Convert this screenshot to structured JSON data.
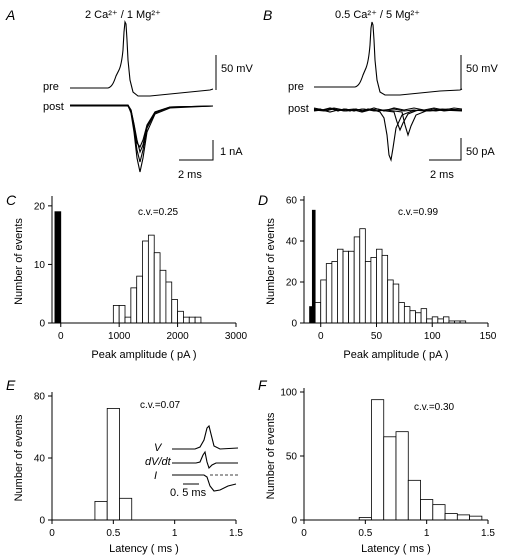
{
  "panels": {
    "A": {
      "letter": "A",
      "condition": "2 Ca²⁺ / 1 Mg²⁺",
      "pre_label": "pre",
      "post_label": "post",
      "scale_v": "50 mV",
      "scale_i": "1 nA",
      "scale_t": "2 ms"
    },
    "B": {
      "letter": "B",
      "condition": "0.5 Ca²⁺ / 5 Mg²⁺",
      "pre_label": "pre",
      "post_label": "post",
      "scale_v": "50 mV",
      "scale_i": "50 pA",
      "scale_t": "2 ms"
    },
    "C": {
      "letter": "C"
    },
    "D": {
      "letter": "D"
    },
    "E": {
      "letter": "E"
    },
    "F": {
      "letter": "F"
    },
    "E_inset": {
      "v": "V",
      "dvdt": "dV/dt",
      "i": "I",
      "scale": "0. 5 ms"
    }
  },
  "chart_data": [
    {
      "id": "C",
      "type": "bar",
      "xlabel": "Peak amplitude ( pA )",
      "ylabel": "Number of events",
      "annotation": "c.v.=0.25",
      "xlim": [
        -150,
        3000
      ],
      "ylim": [
        0,
        21
      ],
      "xticks": [
        0,
        1000,
        2000,
        3000
      ],
      "yticks": [
        0,
        10,
        20
      ],
      "series": [
        {
          "name": "failures",
          "filled": true,
          "bin_width": 100,
          "bins": [
            [
              -100,
              19
            ]
          ]
        },
        {
          "name": "events",
          "filled": false,
          "bin_width": 100,
          "bins": [
            [
              900,
              3
            ],
            [
              1000,
              3
            ],
            [
              1100,
              1
            ],
            [
              1200,
              6
            ],
            [
              1300,
              8
            ],
            [
              1400,
              14
            ],
            [
              1500,
              15
            ],
            [
              1600,
              12
            ],
            [
              1700,
              9
            ],
            [
              1800,
              7
            ],
            [
              1900,
              4
            ],
            [
              2000,
              2
            ],
            [
              2100,
              1
            ],
            [
              2200,
              1
            ],
            [
              2300,
              1
            ]
          ]
        }
      ]
    },
    {
      "id": "D",
      "type": "bar",
      "xlabel": "Peak amplitude ( pA )",
      "ylabel": "Number of events",
      "annotation": "c.v.=0.99",
      "xlim": [
        -15,
        150
      ],
      "ylim": [
        0,
        60
      ],
      "xticks": [
        0,
        50,
        100,
        150
      ],
      "yticks": [
        0,
        20,
        40,
        60
      ],
      "series": [
        {
          "name": "failures",
          "filled": true,
          "bin_width": 2.5,
          "bins": [
            [
              -10,
              8
            ],
            [
              -7.5,
              55
            ],
            [
              -5,
              6
            ],
            [
              -2.5,
              6
            ]
          ]
        },
        {
          "name": "events",
          "filled": false,
          "bin_width": 5,
          "bins": [
            [
              -5,
              10
            ],
            [
              0,
              21
            ],
            [
              5,
              29
            ],
            [
              10,
              30
            ],
            [
              15,
              36
            ],
            [
              20,
              35
            ],
            [
              25,
              35
            ],
            [
              30,
              42
            ],
            [
              35,
              46
            ],
            [
              40,
              30
            ],
            [
              45,
              32
            ],
            [
              50,
              36
            ],
            [
              55,
              33
            ],
            [
              60,
              21
            ],
            [
              65,
              19
            ],
            [
              70,
              10
            ],
            [
              75,
              8
            ],
            [
              80,
              6
            ],
            [
              85,
              5
            ],
            [
              90,
              7
            ],
            [
              95,
              2
            ],
            [
              100,
              3
            ],
            [
              105,
              2
            ],
            [
              110,
              3
            ],
            [
              115,
              1
            ],
            [
              120,
              1
            ],
            [
              125,
              1
            ]
          ]
        }
      ]
    },
    {
      "id": "E",
      "type": "bar",
      "xlabel": "Latency ( ms )",
      "ylabel": "Number of events",
      "annotation": "c.v.=0.07",
      "xlim": [
        0,
        1.5
      ],
      "ylim": [
        0,
        80
      ],
      "xticks": [
        0,
        0.5,
        1,
        1.5
      ],
      "xticklabels": [
        "0",
        "0.5",
        "1",
        "1.5"
      ],
      "yticks": [
        0,
        40,
        80
      ],
      "series": [
        {
          "name": "latency",
          "filled": false,
          "bin_width": 0.1,
          "bins": [
            [
              0.35,
              12
            ],
            [
              0.45,
              72
            ],
            [
              0.55,
              14
            ]
          ]
        }
      ]
    },
    {
      "id": "F",
      "type": "bar",
      "xlabel": "Latency ( ms )",
      "ylabel": "Number of events",
      "annotation": "c.v.=0.30",
      "xlim": [
        0,
        1.5
      ],
      "ylim": [
        0,
        100
      ],
      "xticks": [
        0,
        0.5,
        1,
        1.5
      ],
      "xticklabels": [
        "0",
        "0.5",
        "1",
        "1.5"
      ],
      "yticks": [
        0,
        50,
        100
      ],
      "series": [
        {
          "name": "latency",
          "filled": false,
          "bin_width": 0.1,
          "bins": [
            [
              0.45,
              2
            ],
            [
              0.55,
              94
            ],
            [
              0.65,
              65
            ],
            [
              0.75,
              69
            ],
            [
              0.85,
              31
            ],
            [
              0.95,
              16
            ],
            [
              1.05,
              12
            ],
            [
              1.15,
              5
            ],
            [
              1.25,
              4
            ],
            [
              1.35,
              3
            ]
          ]
        }
      ]
    }
  ]
}
